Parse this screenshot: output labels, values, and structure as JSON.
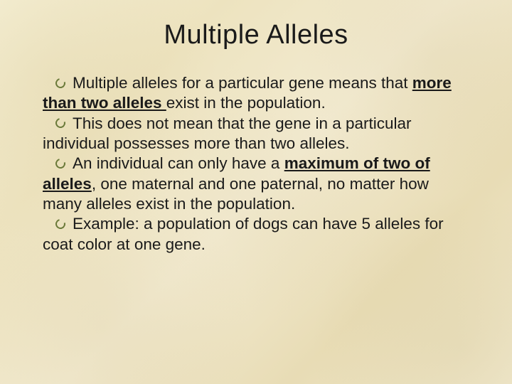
{
  "slide": {
    "title": "Multiple Alleles",
    "background_colors": [
      "#f5efd4",
      "#ede3bf",
      "#f2ead0",
      "#e8dcb5",
      "#f0e8cc"
    ],
    "title_fontsize": 38,
    "body_fontsize": 22.5,
    "text_color": "#1a1a1a",
    "bullet_color": "#6b7a3a",
    "bullets": [
      {
        "pre": "Multiple alleles for a particular gene means that ",
        "emph": "more than two alleles ",
        "emph_style": "bold-underline",
        "post": "exist in the population."
      },
      {
        "pre": "This does not mean that the gene in a particular individual possesses more than two alleles.",
        "emph": "",
        "emph_style": "",
        "post": ""
      },
      {
        "pre": "An individual can only have a ",
        "emph": "maximum of two of alleles",
        "emph_style": "bold-underline",
        "post": ", one maternal and one paternal, no matter how many alleles exist in the population."
      },
      {
        "pre": "Example: a population of dogs can have 5 alleles for coat color at one gene.",
        "emph": "",
        "emph_style": "",
        "post": ""
      }
    ]
  }
}
